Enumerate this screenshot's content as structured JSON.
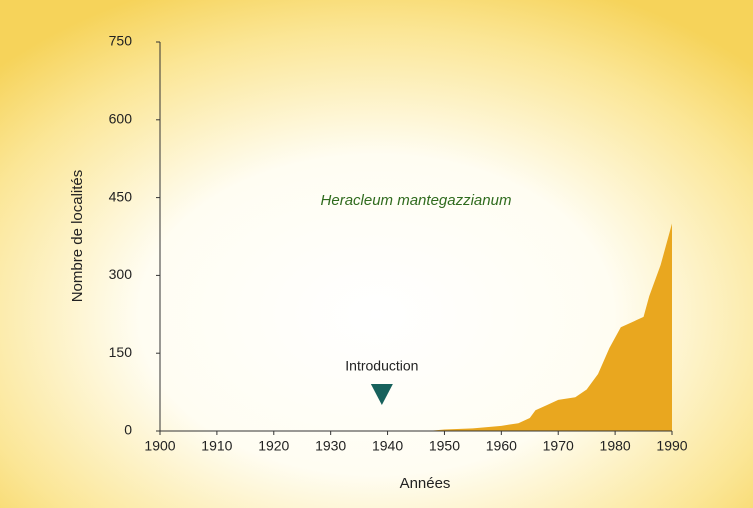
{
  "chart_data": {
    "type": "area",
    "subtitle": "Heracleum mantegazzianum",
    "x_label": "Années",
    "y_label": "Nombre de localités",
    "x": [
      1947,
      1950,
      1955,
      1960,
      1963,
      1965,
      1966,
      1968,
      1970,
      1973,
      1975,
      1977,
      1979,
      1981,
      1983,
      1985,
      1986,
      1988,
      1990
    ],
    "series": [
      {
        "color": "#e9a71f",
        "values": [
          0,
          3,
          5,
          10,
          15,
          25,
          40,
          50,
          60,
          65,
          80,
          110,
          160,
          200,
          210,
          220,
          260,
          320,
          400
        ]
      }
    ],
    "xlim": [
      1900,
      1990
    ],
    "xticks": [
      1900,
      1910,
      1920,
      1930,
      1940,
      1950,
      1960,
      1970,
      1980,
      1990
    ],
    "ylim": [
      0,
      750
    ],
    "yticks": [
      0,
      150,
      300,
      450,
      600,
      750
    ],
    "annotation": {
      "text": "Introduction",
      "x": 1939,
      "color": "#17615c"
    }
  }
}
